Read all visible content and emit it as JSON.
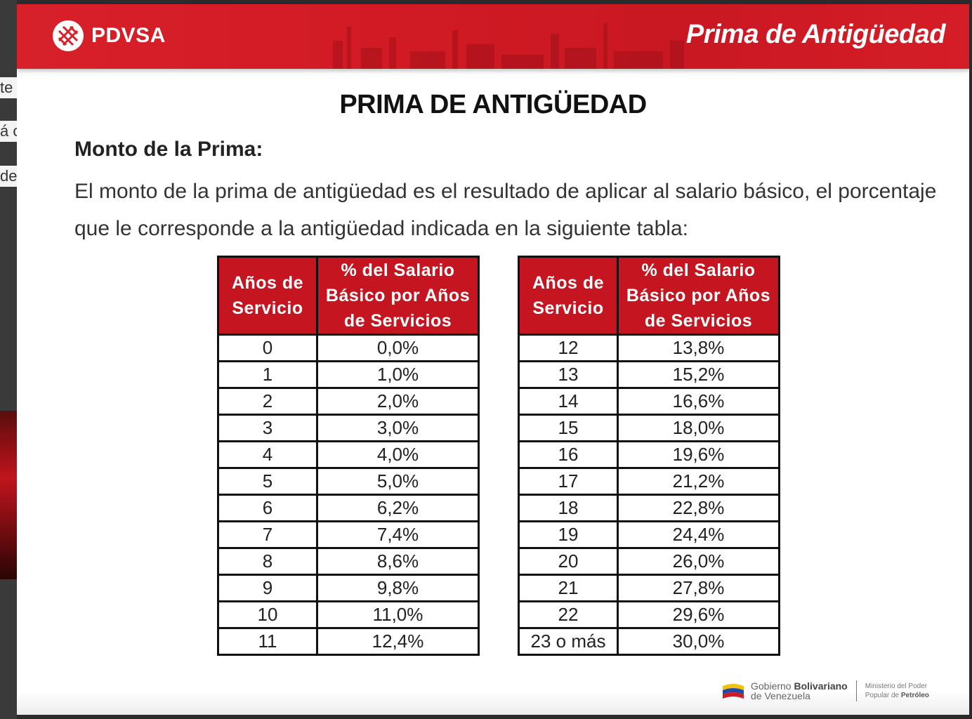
{
  "edge": {
    "frag_1": "te",
    "frag_2": "á c",
    "frag_3": "de"
  },
  "header": {
    "brand": "PDVSA",
    "title": "Prima de Antigüedad"
  },
  "content": {
    "heading": "PRIMA DE ANTIGÜEDAD",
    "subheading": "Monto de la Prima:",
    "intro": "El monto de la prima de antigüedad es el resultado de aplicar al salario básico, el porcentaje que le corresponde a la antigüedad indicada en la siguiente tabla:"
  },
  "table": {
    "col_years": "Años de Servicio",
    "col_percent": "% del Salario Básico por Años de Servicios",
    "left": [
      {
        "years": "0",
        "percent": "0,0%"
      },
      {
        "years": "1",
        "percent": "1,0%"
      },
      {
        "years": "2",
        "percent": "2,0%"
      },
      {
        "years": "3",
        "percent": "3,0%"
      },
      {
        "years": "4",
        "percent": "4,0%"
      },
      {
        "years": "5",
        "percent": "5,0%"
      },
      {
        "years": "6",
        "percent": "6,2%"
      },
      {
        "years": "7",
        "percent": "7,4%"
      },
      {
        "years": "8",
        "percent": "8,6%"
      },
      {
        "years": "9",
        "percent": "9,8%"
      },
      {
        "years": "10",
        "percent": "11,0%"
      },
      {
        "years": "11",
        "percent": "12,4%"
      }
    ],
    "right": [
      {
        "years": "12",
        "percent": "13,8%"
      },
      {
        "years": "13",
        "percent": "15,2%"
      },
      {
        "years": "14",
        "percent": "16,6%"
      },
      {
        "years": "15",
        "percent": "18,0%"
      },
      {
        "years": "16",
        "percent": "19,6%"
      },
      {
        "years": "17",
        "percent": "21,2%"
      },
      {
        "years": "18",
        "percent": "22,8%"
      },
      {
        "years": "19",
        "percent": "24,4%"
      },
      {
        "years": "20",
        "percent": "26,0%"
      },
      {
        "years": "21",
        "percent": "27,8%"
      },
      {
        "years": "22",
        "percent": "29,6%"
      },
      {
        "years": "23 o más",
        "percent": "30,0%"
      }
    ]
  },
  "footer": {
    "gov_line1_pre": "Gobierno ",
    "gov_line1_bold": "Bolivariano",
    "gov_line2": "de Venezuela",
    "ministry_line1": "Ministerio del Poder",
    "ministry_line2_pre": "Popular de ",
    "ministry_line2_bold": "Petróleo"
  },
  "colors": {
    "brand_red": "#c41520",
    "banner_red": "#d7202a"
  },
  "icons": {
    "logo": "pdvsa-logo-icon",
    "flag": "venezuela-flag-icon"
  }
}
